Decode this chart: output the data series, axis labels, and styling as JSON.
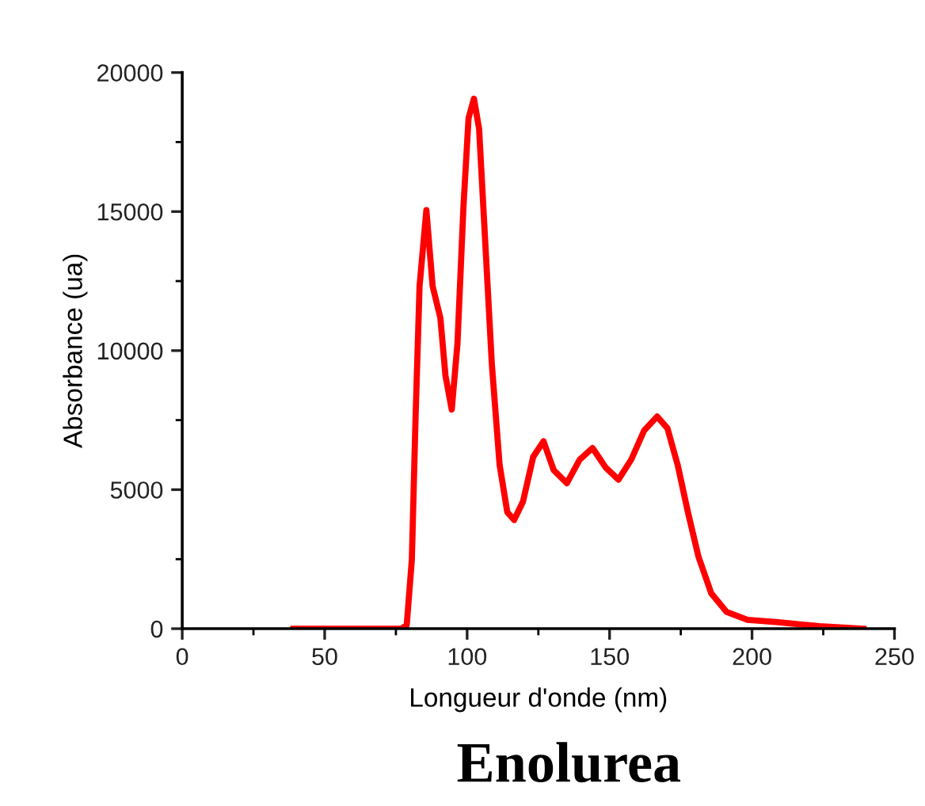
{
  "chart_data": {
    "type": "line",
    "title": "Enolurea",
    "xlabel": "Longueur d'onde (nm)",
    "ylabel": "Absorbance (ua)",
    "x": [
      39,
      77,
      78.8,
      80.6,
      81.9,
      83.3,
      85.7,
      87.9,
      90.6,
      92.4,
      94.6,
      96.6,
      98.7,
      100.5,
      102.4,
      104.2,
      106.0,
      108.7,
      111.4,
      114.1,
      116.5,
      119.6,
      123.2,
      126.8,
      130.4,
      135.0,
      139.5,
      144.0,
      148.6,
      153.1,
      157.6,
      162.1,
      166.7,
      170.3,
      173.9,
      177.5,
      181.2,
      185.7,
      191.1,
      198.4,
      209.2,
      223.7,
      239.1
    ],
    "series": [
      {
        "color": "#ff0000",
        "values": [
          0,
          0,
          130,
          2490,
          7590,
          12310,
          15050,
          12310,
          11180,
          9100,
          7880,
          10240,
          15150,
          18360,
          19060,
          17980,
          14580,
          9480,
          5890,
          4190,
          3910,
          4570,
          6180,
          6740,
          5700,
          5230,
          6080,
          6500,
          5800,
          5360,
          6080,
          7120,
          7630,
          7210,
          5890,
          4190,
          2590,
          1270,
          600,
          320,
          230,
          90,
          0
        ]
      }
    ],
    "xlim": [
      0,
      250
    ],
    "ylim": [
      0,
      20000
    ],
    "xticks": [
      0,
      50,
      100,
      150,
      200,
      250
    ],
    "yticks": [
      0,
      5000,
      10000,
      15000,
      20000
    ],
    "grid": false,
    "legend": false,
    "marker": "none",
    "line_style": "solid"
  }
}
